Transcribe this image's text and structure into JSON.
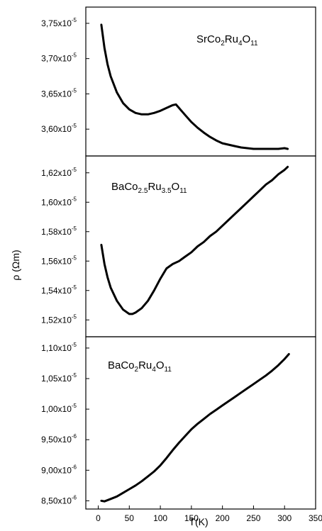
{
  "chart_data": {
    "type": "line",
    "xlabel": "T(K)",
    "ylabel": "ρ (Ωm)",
    "xlim": [
      -20,
      350
    ],
    "x_ticks": [
      "0",
      "50",
      "100",
      "150",
      "200",
      "250",
      "300",
      "350"
    ],
    "shared_x": true,
    "panels": [
      {
        "name": "SrCo2Ru4O11",
        "label": {
          "base1": "SrCo",
          "sub1": "2",
          "base2": "Ru",
          "sub2": "4",
          "base3": "O",
          "sub3": "11"
        },
        "ylim": [
          3.565e-05,
          3.77e-05
        ],
        "y_ticks": [
          {
            "value": 3.6e-05,
            "mantissa": "3,60x10",
            "exp": "-5"
          },
          {
            "value": 3.65e-05,
            "mantissa": "3,65x10",
            "exp": "-5"
          },
          {
            "value": 3.7e-05,
            "mantissa": "3,70x10",
            "exp": "-5"
          },
          {
            "value": 3.75e-05,
            "mantissa": "3,75x10",
            "exp": "-5"
          }
        ],
        "x": [
          5,
          10,
          15,
          20,
          30,
          40,
          50,
          60,
          70,
          80,
          90,
          100,
          110,
          120,
          125,
          130,
          140,
          150,
          160,
          170,
          180,
          190,
          200,
          210,
          220,
          230,
          240,
          250,
          260,
          270,
          280,
          290,
          300,
          305
        ],
        "y": [
          3.748e-05,
          3.715e-05,
          3.692e-05,
          3.675e-05,
          3.652e-05,
          3.637e-05,
          3.628e-05,
          3.623e-05,
          3.621e-05,
          3.621e-05,
          3.623e-05,
          3.626e-05,
          3.63e-05,
          3.634e-05,
          3.635e-05,
          3.63e-05,
          3.62e-05,
          3.61e-05,
          3.602e-05,
          3.595e-05,
          3.589e-05,
          3.584e-05,
          3.58e-05,
          3.578e-05,
          3.576e-05,
          3.574e-05,
          3.573e-05,
          3.572e-05,
          3.572e-05,
          3.572e-05,
          3.572e-05,
          3.572e-05,
          3.573e-05,
          3.572e-05
        ]
      },
      {
        "name": "BaCo2.5Ru3.5O11",
        "label": {
          "base1": "BaCo",
          "sub1": "2.5",
          "base2": "Ru",
          "sub2": "3.5",
          "base3": "O",
          "sub3": "11"
        },
        "ylim": [
          1.51e-05,
          1.63e-05
        ],
        "y_ticks": [
          {
            "value": 1.52e-05,
            "mantissa": "1,52x10",
            "exp": "-5"
          },
          {
            "value": 1.54e-05,
            "mantissa": "1,54x10",
            "exp": "-5"
          },
          {
            "value": 1.56e-05,
            "mantissa": "1,56x10",
            "exp": "-5"
          },
          {
            "value": 1.58e-05,
            "mantissa": "1,58x10",
            "exp": "-5"
          },
          {
            "value": 1.6e-05,
            "mantissa": "1,60x10",
            "exp": "-5"
          },
          {
            "value": 1.62e-05,
            "mantissa": "1,62x10",
            "exp": "-5"
          }
        ],
        "x": [
          5,
          10,
          15,
          20,
          30,
          40,
          50,
          55,
          60,
          70,
          80,
          90,
          100,
          110,
          120,
          130,
          140,
          150,
          160,
          170,
          180,
          190,
          200,
          210,
          220,
          230,
          240,
          250,
          260,
          270,
          280,
          290,
          300,
          305
        ],
        "y": [
          1.571e-05,
          1.558e-05,
          1.549e-05,
          1.542e-05,
          1.533e-05,
          1.527e-05,
          1.524e-05,
          1.524e-05,
          1.525e-05,
          1.528e-05,
          1.533e-05,
          1.54e-05,
          1.548e-05,
          1.555e-05,
          1.558e-05,
          1.56e-05,
          1.563e-05,
          1.566e-05,
          1.57e-05,
          1.573e-05,
          1.577e-05,
          1.58e-05,
          1.584e-05,
          1.588e-05,
          1.592e-05,
          1.596e-05,
          1.6e-05,
          1.604e-05,
          1.608e-05,
          1.612e-05,
          1.615e-05,
          1.619e-05,
          1.622e-05,
          1.624e-05
        ]
      },
      {
        "name": "BaCo2Ru4O11",
        "label": {
          "base1": "BaCo",
          "sub1": "2",
          "base2": "Ru",
          "sub2": "4",
          "base3": "O",
          "sub3": "11"
        },
        "ylim": [
          8.4e-06,
          1.115e-05
        ],
        "y_ticks": [
          {
            "value": 8.5e-06,
            "mantissa": "8,50x10",
            "exp": "-6"
          },
          {
            "value": 9e-06,
            "mantissa": "9,00x10",
            "exp": "-6"
          },
          {
            "value": 9.5e-06,
            "mantissa": "9,50x10",
            "exp": "-6"
          },
          {
            "value": 1e-05,
            "mantissa": "1,00x10",
            "exp": "-5"
          },
          {
            "value": 1.05e-05,
            "mantissa": "1,05x10",
            "exp": "-5"
          },
          {
            "value": 1.1e-05,
            "mantissa": "1,10x10",
            "exp": "-5"
          }
        ],
        "x": [
          5,
          10,
          20,
          30,
          40,
          50,
          60,
          70,
          80,
          90,
          100,
          110,
          120,
          130,
          140,
          150,
          160,
          170,
          180,
          190,
          200,
          210,
          220,
          230,
          240,
          250,
          260,
          270,
          280,
          290,
          300,
          307
        ],
        "y": [
          8.5e-06,
          8.49e-06,
          8.53e-06,
          8.57e-06,
          8.63e-06,
          8.69e-06,
          8.75e-06,
          8.82e-06,
          8.9e-06,
          8.98e-06,
          9.08e-06,
          9.2e-06,
          9.33e-06,
          9.45e-06,
          9.56e-06,
          9.67e-06,
          9.76e-06,
          9.84e-06,
          9.92e-06,
          9.99e-06,
          1.006e-05,
          1.013e-05,
          1.02e-05,
          1.027e-05,
          1.034e-05,
          1.041e-05,
          1.048e-05,
          1.055e-05,
          1.063e-05,
          1.072e-05,
          1.082e-05,
          1.09e-05
        ]
      }
    ]
  }
}
